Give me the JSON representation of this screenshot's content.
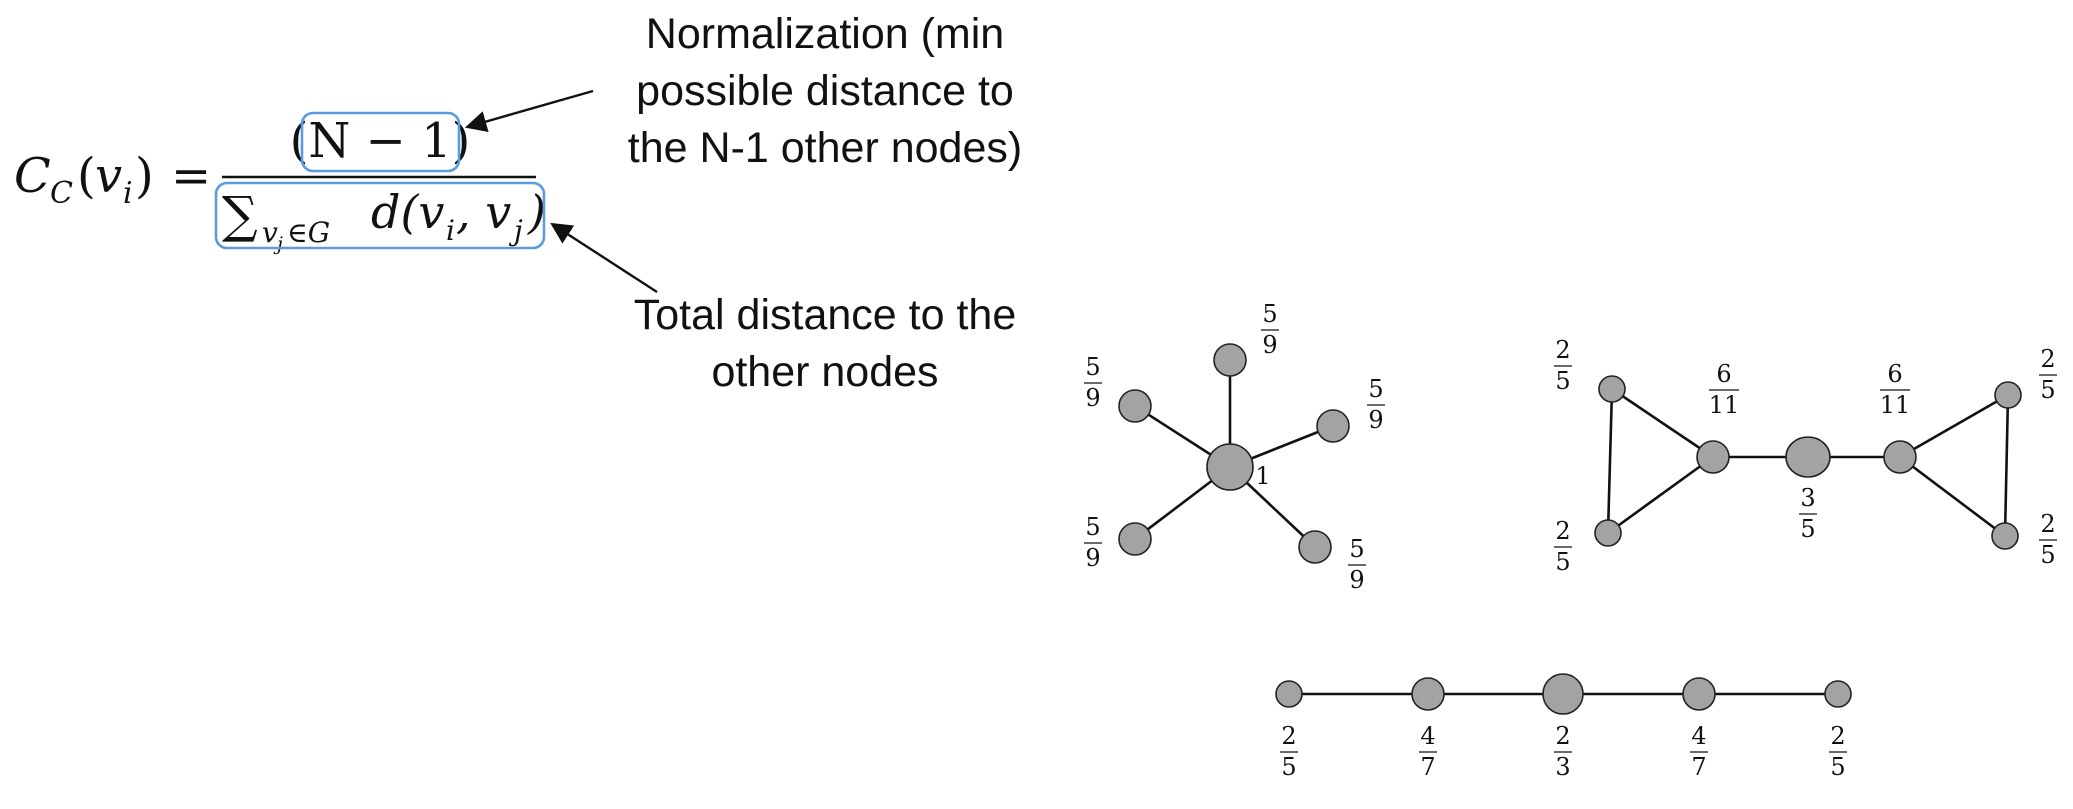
{
  "formula": {
    "lhs": "C",
    "lhs_sub": "C",
    "lhs_arg_open": "(",
    "lhs_arg_var": "v",
    "lhs_arg_sub": "i",
    "lhs_arg_close": ")",
    "equals": "=",
    "numerator": "(N − 1)",
    "sum_symbol": "∑",
    "sum_sub_var": "v",
    "sum_sub_j": "j",
    "sum_sub_rest": "∈G",
    "denominator_term": "d(v",
    "denominator_i": "i",
    "denominator_mid": ", v",
    "denominator_j": "j",
    "denominator_close": ")",
    "highlight_color": "#5b9be0"
  },
  "annotations": {
    "numerator_note": [
      "Normalization (min",
      "possible distance to",
      "the N-1 other nodes)"
    ],
    "denominator_note": [
      "Total distance to the",
      "other nodes"
    ]
  },
  "graphs": {
    "star": {
      "center_label": "1",
      "leaf_labels": [
        {
          "num": "5",
          "den": "9"
        },
        {
          "num": "5",
          "den": "9"
        },
        {
          "num": "5",
          "den": "9"
        },
        {
          "num": "5",
          "den": "9"
        },
        {
          "num": "5",
          "den": "9"
        }
      ]
    },
    "bowtie": {
      "labels": [
        {
          "num": "2",
          "den": "5"
        },
        {
          "num": "2",
          "den": "5"
        },
        {
          "num": "6",
          "den": "11"
        },
        {
          "num": "3",
          "den": "5"
        },
        {
          "num": "6",
          "den": "11"
        },
        {
          "num": "2",
          "den": "5"
        },
        {
          "num": "2",
          "den": "5"
        }
      ]
    },
    "path": {
      "labels": [
        {
          "num": "2",
          "den": "5"
        },
        {
          "num": "4",
          "den": "7"
        },
        {
          "num": "2",
          "den": "3"
        },
        {
          "num": "4",
          "den": "7"
        },
        {
          "num": "2",
          "den": "5"
        }
      ]
    }
  },
  "colors": {
    "node_fill": "#a3a3a3",
    "edge": "#111111",
    "highlight": "#5b9be0"
  }
}
